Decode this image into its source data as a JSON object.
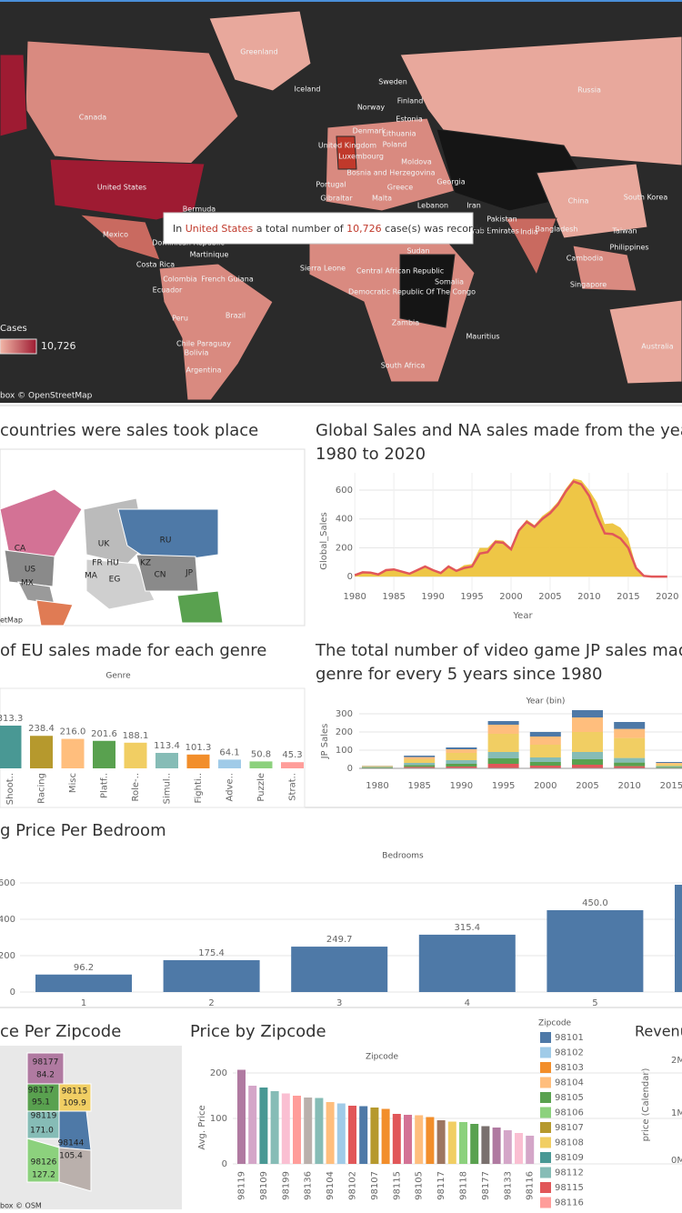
{
  "map": {
    "labels": [
      "Greenland",
      "Iceland",
      "Canada",
      "Sweden",
      "Finland",
      "Norway",
      "Estonia",
      "Denmark",
      "Lithuania",
      "United Kingdom",
      "Poland",
      "Luxembourg",
      "Moldova",
      "Bosnia and Herzegovina",
      "Portugal",
      "Greece",
      "Georgia",
      "Gibraltar",
      "Malta",
      "Lebanon",
      "Iran",
      "Russia",
      "United States",
      "Bermuda",
      "China",
      "South Korea",
      "Pakistan",
      "United Arab Emirates",
      "India",
      "Bangladesh",
      "Taiwan",
      "Mexico",
      "Dominican Republic",
      "Martinique",
      "Sudan",
      "Philippines",
      "Cambodia",
      "Costa Rica",
      "Colombia",
      "French Guiana",
      "Sierra Leone",
      "Central African Republic",
      "Somalia",
      "Ecuador",
      "Singapore",
      "Democratic Republic Of The Congo",
      "Brazil",
      "Peru",
      "Zambia",
      "Bolivia",
      "Mauritius",
      "Chile Paraguay",
      "Australia",
      "Argentina",
      "South Africa"
    ],
    "legend_title": "Cases",
    "legend_max": "10,726",
    "attribution": "box © OpenStreetMap",
    "tooltip": {
      "prefix": "In",
      "country": "United States",
      "middle": "a total number of",
      "count": "10,726",
      "suffix": "case(s) was recorded"
    }
  },
  "sales_map": {
    "title": "countries were sales took place",
    "labels": [
      "CA",
      "US",
      "MX",
      "RU",
      "FR",
      "HU",
      "UK",
      "CN",
      "JP",
      "MA",
      "EG",
      "KZ"
    ],
    "attribution": "etMap"
  },
  "zip_map": {
    "title": "ce Per Zipcode",
    "labels": [
      "98177",
      "84.2",
      "98117",
      "98115",
      "109.9",
      "95.1",
      "98119",
      "171.0",
      "98144",
      "105.4",
      "98126",
      "127.2"
    ],
    "attribution": "box © OSM"
  },
  "revenue": {
    "title": "Revenu",
    "ticks": [
      "2M",
      "1M",
      "0M"
    ],
    "axis_label": "price (Calendar)"
  },
  "chart_data": [
    {
      "type": "area",
      "title": [
        "Global Sales and NA sales made from the year",
        "1980 to 2020"
      ],
      "y_label": "Global_Sales",
      "x_label": "Year",
      "x": [
        1980,
        1981,
        1982,
        1983,
        1984,
        1985,
        1986,
        1987,
        1988,
        1989,
        1990,
        1991,
        1992,
        1993,
        1994,
        1995,
        1996,
        1997,
        1998,
        1999,
        2000,
        2001,
        2002,
        2003,
        2004,
        2005,
        2006,
        2007,
        2008,
        2009,
        2010,
        2011,
        2012,
        2013,
        2014,
        2015,
        2016,
        2017,
        2018,
        2019,
        2020
      ],
      "xlim": [
        1978,
        2022
      ],
      "xticks": [
        1980,
        1985,
        1990,
        1995,
        2000,
        2005,
        2010,
        2015,
        2020
      ],
      "ylim": [
        -100,
        720
      ],
      "yticks": [
        0,
        200,
        400,
        600
      ],
      "grid": true,
      "series": [
        {
          "color": "#edc33c",
          "mark": "area",
          "values": [
            12,
            35,
            30,
            17,
            50,
            54,
            38,
            22,
            48,
            72,
            50,
            32,
            77,
            46,
            80,
            88,
            200,
            200,
            255,
            250,
            200,
            330,
            395,
            357,
            420,
            460,
            520,
            610,
            680,
            668,
            600,
            515,
            365,
            370,
            340,
            265,
            70,
            5,
            0,
            0,
            0
          ]
        },
        {
          "color": "#e15759",
          "mark": "line",
          "values": [
            10,
            30,
            28,
            15,
            45,
            50,
            35,
            20,
            45,
            70,
            45,
            25,
            70,
            40,
            60,
            70,
            160,
            170,
            240,
            235,
            190,
            320,
            380,
            345,
            400,
            440,
            500,
            590,
            660,
            640,
            560,
            420,
            300,
            295,
            265,
            200,
            60,
            5,
            0,
            0,
            0
          ]
        }
      ]
    },
    {
      "type": "bar",
      "title": "of EU sales made for each genre",
      "header": "Genre",
      "categories": [
        "Shoot..",
        "Racing",
        "Misc",
        "Platf..",
        "Role-..",
        "Simul..",
        "Fighti..",
        "Adve..",
        "Puzzle",
        "Strat.."
      ],
      "values": [
        313.3,
        238.4,
        216.0,
        201.6,
        188.1,
        113.4,
        101.3,
        64.1,
        50.8,
        45.3
      ],
      "value_labels": [
        "313.3",
        "238.4",
        "216.0",
        "201.6",
        "188.1",
        "113.4",
        "101.3",
        "64.1",
        "50.8",
        "45.3"
      ],
      "colors": [
        "#499894",
        "#b6992d",
        "#ffbe7d",
        "#59a14f",
        "#f1ce63",
        "#86bcb6",
        "#f28e2b",
        "#a0cbe8",
        "#8cd17d",
        "#ff9d9a"
      ]
    },
    {
      "type": "stacked_bar",
      "title": [
        "The total number of video game JP sales made",
        "genre for every 5 years since 1980"
      ],
      "header": "Year (bin)",
      "y_label": "JP Sales",
      "categories": [
        "1980",
        "1985",
        "1990",
        "1995",
        "2000",
        "2005",
        "2010",
        "2015"
      ],
      "ylim": [
        -65,
        335
      ],
      "yticks": [
        0,
        100,
        200,
        300
      ],
      "grid": true,
      "series": [
        {
          "color": "#e15759",
          "values": [
            2,
            8,
            10,
            25,
            15,
            20,
            12,
            3
          ]
        },
        {
          "color": "#59a14f",
          "values": [
            3,
            10,
            15,
            30,
            20,
            30,
            20,
            5
          ]
        },
        {
          "color": "#86bcb6",
          "values": [
            3,
            12,
            20,
            35,
            25,
            40,
            25,
            5
          ]
        },
        {
          "color": "#f1ce63",
          "values": [
            4,
            20,
            40,
            100,
            70,
            110,
            110,
            10
          ]
        },
        {
          "color": "#ffbe7d",
          "values": [
            2,
            12,
            20,
            50,
            45,
            80,
            50,
            7
          ]
        },
        {
          "color": "#4e79a7",
          "values": [
            1,
            8,
            10,
            20,
            25,
            40,
            38,
            5
          ]
        }
      ]
    },
    {
      "type": "bar",
      "title": "g Price Per Bedroom",
      "header": "Bedrooms",
      "categories": [
        "1",
        "2",
        "3",
        "4",
        "5",
        null
      ],
      "values": [
        96.2,
        175.4,
        249.7,
        315.4,
        450.0,
        590
      ],
      "value_labels": [
        "96.2",
        "175.4",
        "249.7",
        "315.4",
        "450.0",
        null
      ],
      "ylim": [
        0,
        665
      ],
      "yticks": [
        0,
        200,
        400,
        600
      ],
      "grid": true,
      "color": "#4e79a7"
    },
    {
      "type": "bar",
      "title": "Price by Zipcode",
      "header": "Zipcode",
      "y_label": "Avg. Price",
      "categories": [
        "98119",
        null,
        "98109",
        null,
        "98199",
        null,
        "98136",
        null,
        "98104",
        null,
        "98102",
        null,
        "98107",
        null,
        "98115",
        null,
        "98105",
        null,
        "98117",
        null,
        "98118",
        null,
        "98177",
        null,
        "98133",
        null,
        "98116"
      ],
      "values": [
        207,
        172,
        168,
        160,
        155,
        150,
        146,
        145,
        136,
        133,
        128,
        127,
        124,
        121,
        110,
        108,
        107,
        103,
        96,
        93,
        92,
        88,
        83,
        80,
        74,
        68,
        62
      ],
      "colors": [
        "#b07aa1",
        "#d4a6c8",
        "#499894",
        "#86bcb6",
        "#fabfd2",
        "#ff9d9a",
        "#bab0ac",
        "#86bcb6",
        "#ffbe7d",
        "#a0cbe8",
        "#e15759",
        "#4e79a7",
        "#b6992d",
        "#f28e2b",
        "#e15759",
        "#d37295",
        "#ffbe7d",
        "#f28e2b",
        "#9d7660",
        "#f1ce63",
        "#8cd17d",
        "#59a14f",
        "#79706e",
        "#b07aa1",
        "#d4a6c8",
        "#fabfd2",
        "#d4a6c8"
      ],
      "ylim": [
        0,
        220
      ],
      "yticks": [
        0,
        100,
        200
      ],
      "grid": true,
      "legend_title": "Zipcode",
      "legend": [
        {
          "name": "98101",
          "color": "#4e79a7"
        },
        {
          "name": "98102",
          "color": "#a0cbe8"
        },
        {
          "name": "98103",
          "color": "#f28e2b"
        },
        {
          "name": "98104",
          "color": "#ffbe7d"
        },
        {
          "name": "98105",
          "color": "#59a14f"
        },
        {
          "name": "98106",
          "color": "#8cd17d"
        },
        {
          "name": "98107",
          "color": "#b6992d"
        },
        {
          "name": "98108",
          "color": "#f1ce63"
        },
        {
          "name": "98109",
          "color": "#499894"
        },
        {
          "name": "98112",
          "color": "#86bcb6"
        },
        {
          "name": "98115",
          "color": "#e15759"
        },
        {
          "name": "98116",
          "color": "#ff9d9a"
        }
      ]
    }
  ]
}
